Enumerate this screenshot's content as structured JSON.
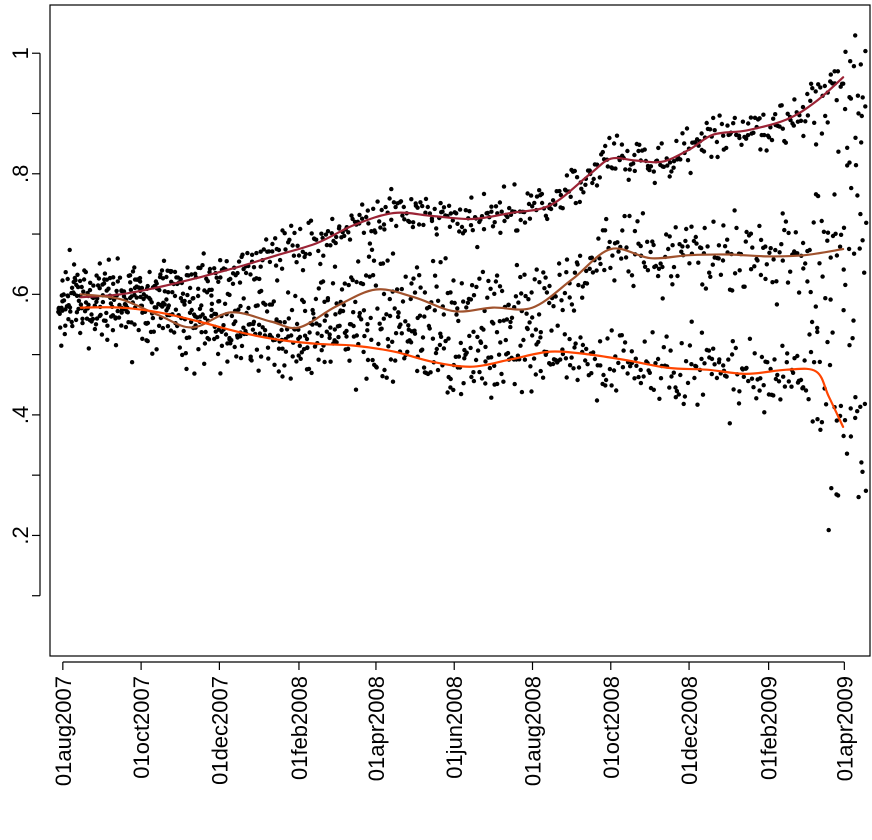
{
  "chart_data": {
    "type": "scatter",
    "title": "",
    "xlabel": "",
    "ylabel": "",
    "x_ticks": [
      "01aug2007",
      "01oct2007",
      "01dec2007",
      "01feb2008",
      "01apr2008",
      "01jun2008",
      "01aug2008",
      "01oct2008",
      "01dec2008",
      "01feb2009",
      "01apr2009"
    ],
    "y_ticks": [
      "",
      ".2",
      "",
      ".4",
      "",
      ".6",
      "",
      ".8",
      "",
      "1"
    ],
    "y_tick_values": [
      0.1,
      0.2,
      0.3,
      0.4,
      0.5,
      0.6,
      0.7,
      0.8,
      0.9,
      1.0
    ],
    "xlim": [
      "2007-07-22",
      "2009-04-21"
    ],
    "ylim": [
      0.0,
      1.08
    ],
    "grid": false,
    "marker_color": "#000000",
    "series": [
      {
        "color": "#9b2335",
        "values": [
          {
            "x": "2007-08-15",
            "y": 0.595
          },
          {
            "x": "2007-09-15",
            "y": 0.6
          },
          {
            "x": "2007-10-15",
            "y": 0.612
          },
          {
            "x": "2007-11-15",
            "y": 0.628
          },
          {
            "x": "2007-12-15",
            "y": 0.645
          },
          {
            "x": "2008-01-15",
            "y": 0.665
          },
          {
            "x": "2008-02-15",
            "y": 0.685
          },
          {
            "x": "2008-03-15",
            "y": 0.715
          },
          {
            "x": "2008-04-15",
            "y": 0.735
          },
          {
            "x": "2008-05-15",
            "y": 0.73
          },
          {
            "x": "2008-06-15",
            "y": 0.725
          },
          {
            "x": "2008-07-15",
            "y": 0.735
          },
          {
            "x": "2008-08-15",
            "y": 0.748
          },
          {
            "x": "2008-09-15",
            "y": 0.8
          },
          {
            "x": "2008-10-01",
            "y": 0.825
          },
          {
            "x": "2008-10-20",
            "y": 0.822
          },
          {
            "x": "2008-11-10",
            "y": 0.82
          },
          {
            "x": "2008-12-01",
            "y": 0.84
          },
          {
            "x": "2008-12-20",
            "y": 0.865
          },
          {
            "x": "2009-01-15",
            "y": 0.872
          },
          {
            "x": "2009-02-15",
            "y": 0.89
          },
          {
            "x": "2009-03-10",
            "y": 0.92
          },
          {
            "x": "2009-03-31",
            "y": 0.96
          }
        ]
      },
      {
        "color": "#a0522d",
        "values": [
          {
            "x": "2007-08-15",
            "y": 0.6
          },
          {
            "x": "2007-09-15",
            "y": 0.592
          },
          {
            "x": "2007-10-15",
            "y": 0.565
          },
          {
            "x": "2007-11-10",
            "y": 0.545
          },
          {
            "x": "2007-12-10",
            "y": 0.57
          },
          {
            "x": "2008-01-10",
            "y": 0.555
          },
          {
            "x": "2008-02-01",
            "y": 0.545
          },
          {
            "x": "2008-03-01",
            "y": 0.58
          },
          {
            "x": "2008-04-01",
            "y": 0.608
          },
          {
            "x": "2008-05-01",
            "y": 0.595
          },
          {
            "x": "2008-06-01",
            "y": 0.572
          },
          {
            "x": "2008-07-01",
            "y": 0.578
          },
          {
            "x": "2008-08-01",
            "y": 0.578
          },
          {
            "x": "2008-09-01",
            "y": 0.625
          },
          {
            "x": "2008-10-01",
            "y": 0.675
          },
          {
            "x": "2008-11-01",
            "y": 0.66
          },
          {
            "x": "2008-12-01",
            "y": 0.665
          },
          {
            "x": "2009-01-01",
            "y": 0.666
          },
          {
            "x": "2009-02-01",
            "y": 0.663
          },
          {
            "x": "2009-03-01",
            "y": 0.665
          },
          {
            "x": "2009-03-31",
            "y": 0.675
          }
        ]
      },
      {
        "color": "#ff4500",
        "values": [
          {
            "x": "2007-08-15",
            "y": 0.578
          },
          {
            "x": "2007-09-15",
            "y": 0.578
          },
          {
            "x": "2007-10-15",
            "y": 0.57
          },
          {
            "x": "2007-11-15",
            "y": 0.555
          },
          {
            "x": "2007-12-15",
            "y": 0.538
          },
          {
            "x": "2008-01-15",
            "y": 0.525
          },
          {
            "x": "2008-02-15",
            "y": 0.518
          },
          {
            "x": "2008-03-15",
            "y": 0.515
          },
          {
            "x": "2008-04-15",
            "y": 0.505
          },
          {
            "x": "2008-05-15",
            "y": 0.488
          },
          {
            "x": "2008-06-15",
            "y": 0.48
          },
          {
            "x": "2008-07-15",
            "y": 0.492
          },
          {
            "x": "2008-08-15",
            "y": 0.505
          },
          {
            "x": "2008-09-15",
            "y": 0.5
          },
          {
            "x": "2008-10-15",
            "y": 0.49
          },
          {
            "x": "2008-11-15",
            "y": 0.478
          },
          {
            "x": "2008-12-15",
            "y": 0.475
          },
          {
            "x": "2009-01-15",
            "y": 0.468
          },
          {
            "x": "2009-02-15",
            "y": 0.475
          },
          {
            "x": "2009-03-10",
            "y": 0.472
          },
          {
            "x": "2009-03-20",
            "y": 0.43
          },
          {
            "x": "2009-03-31",
            "y": 0.38
          }
        ]
      }
    ]
  }
}
